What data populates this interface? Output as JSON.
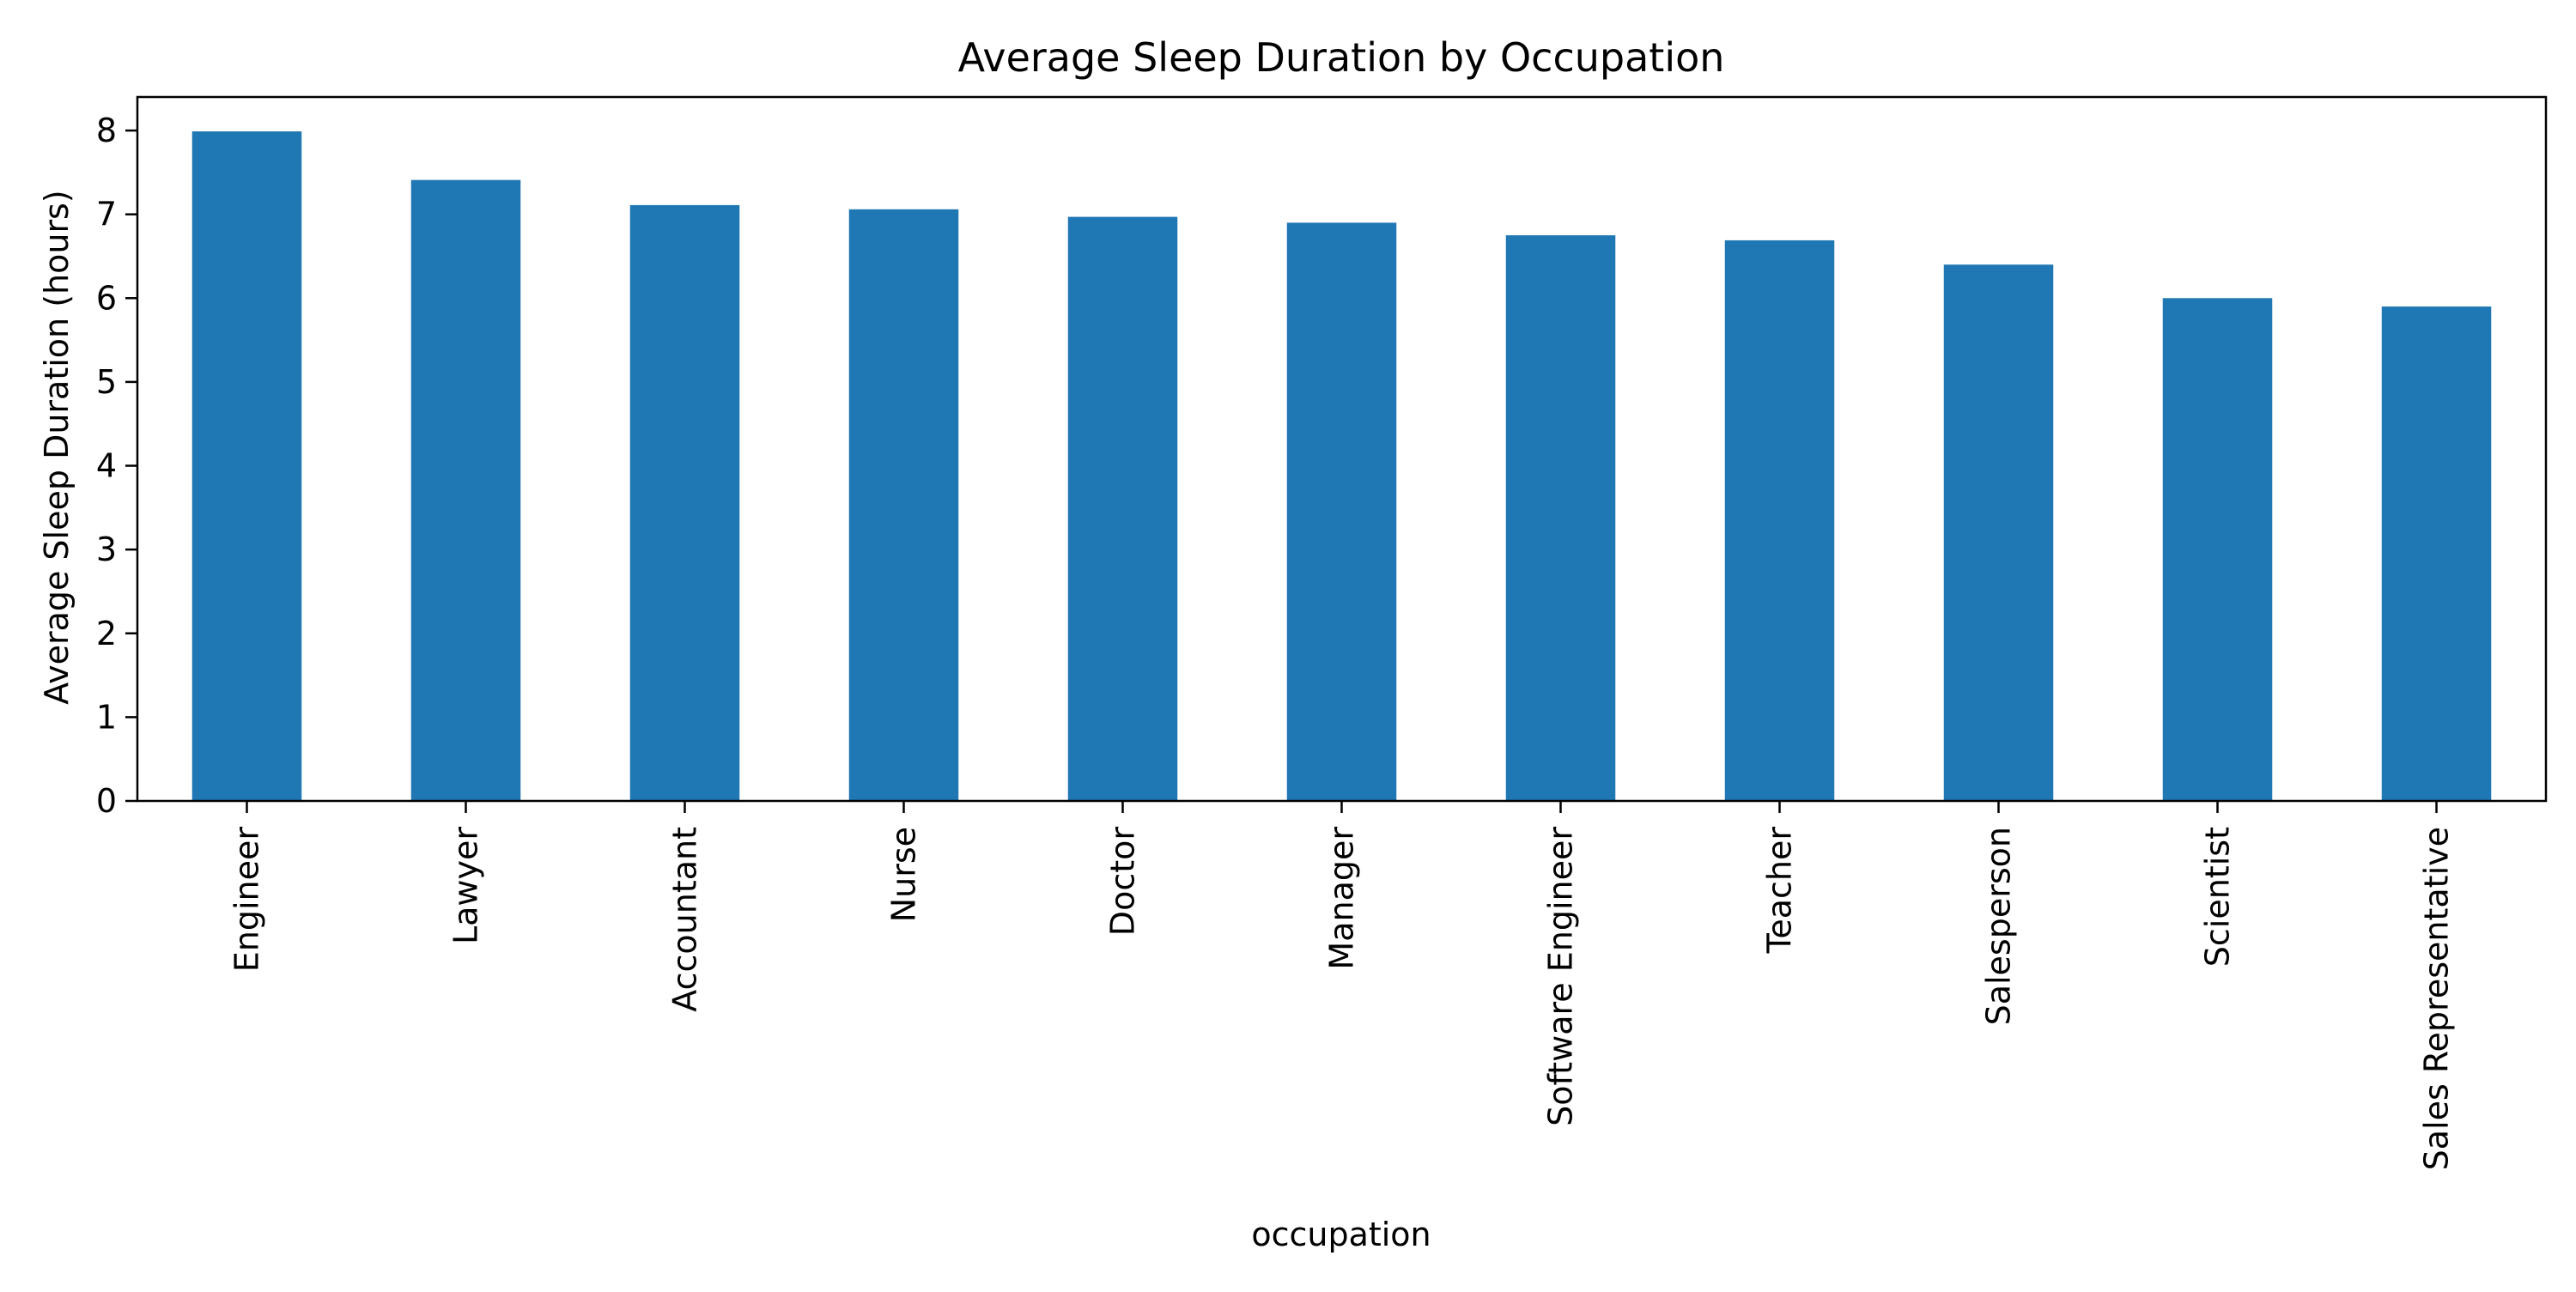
{
  "chart_data": {
    "type": "bar",
    "title": "Average Sleep Duration by Occupation",
    "xlabel": "occupation",
    "ylabel": "Average Sleep Duration (hours)",
    "categories": [
      "Engineer",
      "Lawyer",
      "Accountant",
      "Nurse",
      "Doctor",
      "Manager",
      "Software Engineer",
      "Teacher",
      "Salesperson",
      "Scientist",
      "Sales Representative"
    ],
    "values": [
      7.99,
      7.41,
      7.11,
      7.06,
      6.97,
      6.9,
      6.75,
      6.69,
      6.4,
      6.0,
      5.9
    ],
    "ylim": [
      0,
      8.4
    ],
    "yticks": [
      0,
      1,
      2,
      3,
      4,
      5,
      6,
      7,
      8
    ],
    "grid": false,
    "bar_color": "#1f77b4"
  }
}
